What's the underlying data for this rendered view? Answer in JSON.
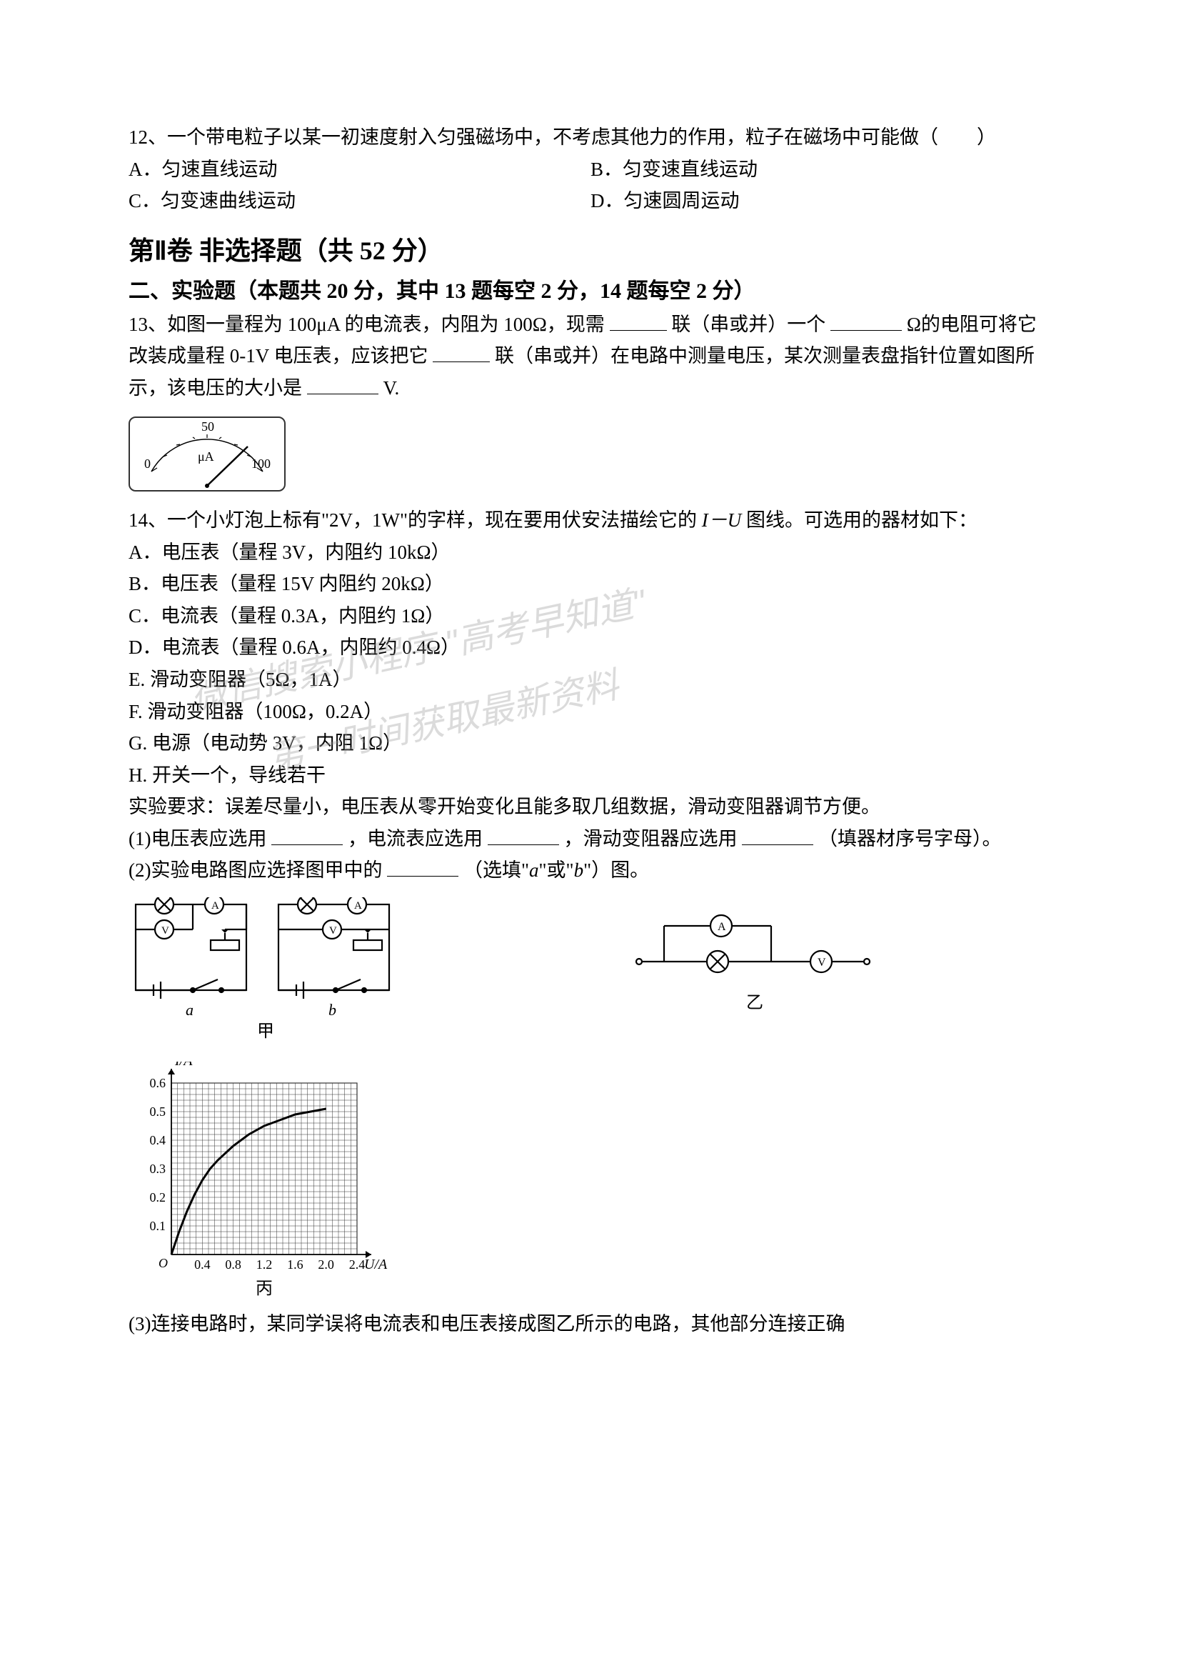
{
  "q12": {
    "text": "12、一个带电粒子以某一初速度射入匀强磁场中，不考虑其他力的作用，粒子在磁场中可能做（　　）",
    "optA": "A．匀速直线运动",
    "optB": "B．匀变速直线运动",
    "optC": "C．匀变速曲线运动",
    "optD": "D．匀速圆周运动"
  },
  "section2": {
    "title": "第Ⅱ卷  非选择题（共 52 分）",
    "subsection": "二、实验题（本题共 20 分，其中 13 题每空 2 分，14 题每空 2 分）"
  },
  "q13": {
    "p1_a": "13、如图一量程为 100μA 的电流表，内阻为 100Ω，现需",
    "p1_b": "联（串或并）一个",
    "p1_c": "Ω的电阻可将它改装成量程 0-1V 电压表，应该把它",
    "p1_d": "联（串或并）在电路中测量电压，某次测量表盘指针位置如图所示，该电压的大小是",
    "p1_e": "V."
  },
  "meter": {
    "left_label": "0",
    "mid_label": "50",
    "right_label": "100",
    "unit": "μA",
    "needle_angle": 48,
    "border_color": "#333333",
    "background": "#ffffff"
  },
  "q14": {
    "intro_a": "14、一个小灯泡上标有\"2V，1W\"的字样，现在要用伏安法描绘它的 ",
    "intro_iv": "I－U",
    "intro_b": " 图线。可选用的器材如下：",
    "items": [
      "A．电压表（量程 3V，内阻约 10kΩ）",
      "B．电压表（量程 15V 内阻约 20kΩ）",
      "C．电流表（量程 0.3A，内阻约 1Ω）",
      "D．电流表（量程 0.6A，内阻约 0.4Ω）",
      "E. 滑动变阻器（5Ω，1A）",
      "F. 滑动变阻器（100Ω，0.2A）",
      "G. 电源（电动势 3V，内阻 1Ω）",
      "H. 开关一个，导线若干"
    ],
    "req": "实验要求：误差尽量小，电压表从零开始变化且能多取几组数据，滑动变阻器调节方便。",
    "q1_a": "(1)电压表应选用",
    "q1_b": "，电流表应选用",
    "q1_c": "，滑动变阻器应选用",
    "q1_d": "（填器材序号字母）。",
    "q2_a": "(2)实验电路图应选择图甲中的",
    "q2_b": "（选填\"",
    "q2_c": "\"或\"",
    "q2_d": "\"）图。",
    "opt_a": "a",
    "opt_b": "b",
    "q3": "(3)连接电路时，某同学误将电流表和电压表接成图乙所示的电路，其他部分连接正确"
  },
  "circuit_labels": {
    "a": "a",
    "b": "b",
    "jia": "甲",
    "yi": "乙",
    "bing": "丙",
    "A": "A",
    "V": "V"
  },
  "chart": {
    "type": "line",
    "ylabel": "I/A",
    "xlabel": "U/A",
    "xlim": [
      0,
      2.4
    ],
    "ylim": [
      0,
      0.6
    ],
    "xtick_step": 0.4,
    "ytick_step": 0.1,
    "xtick_labels": [
      "0.4",
      "0.8",
      "1.2",
      "1.6",
      "2.0",
      "2.4"
    ],
    "ytick_labels": [
      "0.1",
      "0.2",
      "0.3",
      "0.4",
      "0.5",
      "0.6"
    ],
    "minor_grid_divisions": 5,
    "background_color": "#ffffff",
    "grid_color": "#333333",
    "axis_color": "#000000",
    "line_color": "#000000",
    "line_width": 2,
    "data_points": [
      [
        0,
        0
      ],
      [
        0.1,
        0.08
      ],
      [
        0.2,
        0.15
      ],
      [
        0.3,
        0.21
      ],
      [
        0.4,
        0.26
      ],
      [
        0.5,
        0.3
      ],
      [
        0.6,
        0.33
      ],
      [
        0.8,
        0.38
      ],
      [
        1.0,
        0.42
      ],
      [
        1.2,
        0.45
      ],
      [
        1.4,
        0.47
      ],
      [
        1.6,
        0.49
      ],
      [
        1.8,
        0.5
      ],
      [
        2.0,
        0.51
      ]
    ],
    "label_fontsize": 20,
    "tick_fontsize": 18
  },
  "watermark": {
    "line1": "微信搜索小程序 \"高考早知道\"",
    "line2": "第一时间获取最新资料"
  }
}
